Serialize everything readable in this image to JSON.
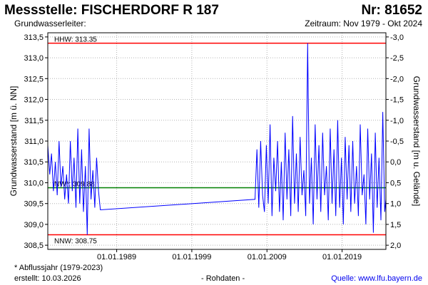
{
  "header": {
    "title": "Messstelle: FISCHERDORF R 187",
    "number": "Nr: 81652",
    "subtitle_left": "Grundwasserleiter:",
    "subtitle_right": "Zeitraum: Nov 1979 - Okt 2024"
  },
  "footer": {
    "note": "* Abflussjahr (1979-2023)",
    "created": "erstellt:  10.03.2026",
    "mode": "- Rohdaten -",
    "source": "Quelle: www.lfu.bayern.de"
  },
  "colors": {
    "series": "#0000ff",
    "extreme_lines": "#ff0000",
    "mean_line": "#008000",
    "grid": "#b4b4b4"
  },
  "chart_data": {
    "type": "line",
    "ylabel_left": "Grundwasserstand [m ü. NN]",
    "ylabel_right": "Grundwasserstand [m u. Gelände]",
    "ylim": [
      308.4,
      313.6
    ],
    "yticks": [
      "313,5",
      "313,0",
      "312,5",
      "312,0",
      "311,5",
      "311,0",
      "310,5",
      "310,0",
      "309,5",
      "309,0",
      "308,5"
    ],
    "ytick_values": [
      313.5,
      313.0,
      312.5,
      312.0,
      311.5,
      311.0,
      310.5,
      310.0,
      309.5,
      309.0,
      308.5
    ],
    "yticks_right": [
      "-3,0",
      "-2,5",
      "-2,0",
      "-1,5",
      "-1,0",
      "-0,5",
      "0,0",
      "0,5",
      "1,0",
      "1,5",
      "2,0"
    ],
    "yticks_right_values": [
      313.5,
      313.0,
      312.5,
      312.0,
      311.5,
      311.0,
      310.5,
      310.0,
      309.5,
      309.0,
      308.5
    ],
    "xlim": [
      "1979-11-01",
      "2024-10-31"
    ],
    "xticks": [
      "01.01.1989",
      "01.01.1999",
      "01.01.2009",
      "01.01.2019"
    ],
    "xtick_values": [
      "1989-01-01",
      "1999-01-01",
      "2009-01-01",
      "2019-01-01"
    ],
    "reference_lines": [
      {
        "name": "HHW",
        "label": "HHW: 313.35",
        "value": 313.35,
        "color": "#ff0000"
      },
      {
        "name": "NW*",
        "label": "NW*: 309.88",
        "value": 309.88,
        "color": "#008000"
      },
      {
        "name": "NNW",
        "label": "NNW: 308.75",
        "value": 308.75,
        "color": "#ff0000"
      }
    ],
    "series": [
      {
        "color": "#0000ff",
        "x": [
          "1979-11-01",
          "1980-02-01",
          "1980-05-01",
          "1980-08-01",
          "1980-11-01",
          "1981-02-01",
          "1981-05-01",
          "1981-08-01",
          "1981-11-01",
          "1982-02-01",
          "1982-05-01",
          "1982-08-01",
          "1982-11-01",
          "1983-02-01",
          "1983-05-01",
          "1983-08-01",
          "1983-11-01",
          "1984-02-01",
          "1984-05-01",
          "1984-08-01",
          "1984-11-01",
          "1985-02-01",
          "1985-05-01",
          "1985-08-01",
          "1985-11-01",
          "1986-02-01",
          "1986-05-01",
          "1986-08-01",
          "1986-11-01",
          "2007-06-01",
          "2007-09-01",
          "2007-12-01",
          "2008-03-01",
          "2008-06-01",
          "2008-09-01",
          "2008-12-01",
          "2009-03-01",
          "2009-06-01",
          "2009-09-01",
          "2009-12-01",
          "2010-03-01",
          "2010-06-01",
          "2010-09-01",
          "2010-12-01",
          "2011-03-01",
          "2011-06-01",
          "2011-09-01",
          "2011-12-01",
          "2012-03-01",
          "2012-06-01",
          "2012-09-01",
          "2012-12-01",
          "2013-03-01",
          "2013-06-01",
          "2013-09-01",
          "2013-12-01",
          "2014-03-01",
          "2014-06-01",
          "2014-09-01",
          "2014-12-01",
          "2015-03-01",
          "2015-06-01",
          "2015-09-01",
          "2015-12-01",
          "2016-03-01",
          "2016-06-01",
          "2016-09-01",
          "2016-12-01",
          "2017-03-01",
          "2017-06-01",
          "2017-09-01",
          "2017-12-01",
          "2018-03-01",
          "2018-06-01",
          "2018-09-01",
          "2018-12-01",
          "2019-03-01",
          "2019-06-01",
          "2019-09-01",
          "2019-12-01",
          "2020-03-01",
          "2020-06-01",
          "2020-09-01",
          "2020-12-01",
          "2021-03-01",
          "2021-06-01",
          "2021-09-01",
          "2021-12-01",
          "2022-03-01",
          "2022-06-01",
          "2022-09-01",
          "2022-12-01",
          "2023-03-01",
          "2023-06-01",
          "2023-09-01",
          "2023-12-01",
          "2024-03-01",
          "2024-06-01",
          "2024-09-01",
          "2024-10-31"
        ],
        "y": [
          310.9,
          310.2,
          310.7,
          309.8,
          310.5,
          309.7,
          311.0,
          309.9,
          310.4,
          309.6,
          310.2,
          309.5,
          311.0,
          309.8,
          310.6,
          309.4,
          311.3,
          309.5,
          310.8,
          309.3,
          310.4,
          308.75,
          311.3,
          309.6,
          310.3,
          309.4,
          310.6,
          309.8,
          309.35,
          309.6,
          310.8,
          309.4,
          311.0,
          309.7,
          309.3,
          310.9,
          309.5,
          311.4,
          309.2,
          310.6,
          309.8,
          311.0,
          309.3,
          310.5,
          309.1,
          311.2,
          309.6,
          310.8,
          309.2,
          311.6,
          309.5,
          310.7,
          309.3,
          311.1,
          309.7,
          310.3,
          309.2,
          313.35,
          309.5,
          310.6,
          309.0,
          311.4,
          309.6,
          310.9,
          309.3,
          311.2,
          309.7,
          310.4,
          309.1,
          311.3,
          309.5,
          310.8,
          309.2,
          311.5,
          309.4,
          310.6,
          309.0,
          311.1,
          309.6,
          310.9,
          309.3,
          311.0,
          309.5,
          310.4,
          309.2,
          311.4,
          309.7,
          310.2,
          309.0,
          311.3,
          309.6,
          310.7,
          308.8,
          311.2,
          309.4,
          310.6,
          309.1,
          311.7,
          309.3,
          309.6
        ]
      }
    ]
  }
}
